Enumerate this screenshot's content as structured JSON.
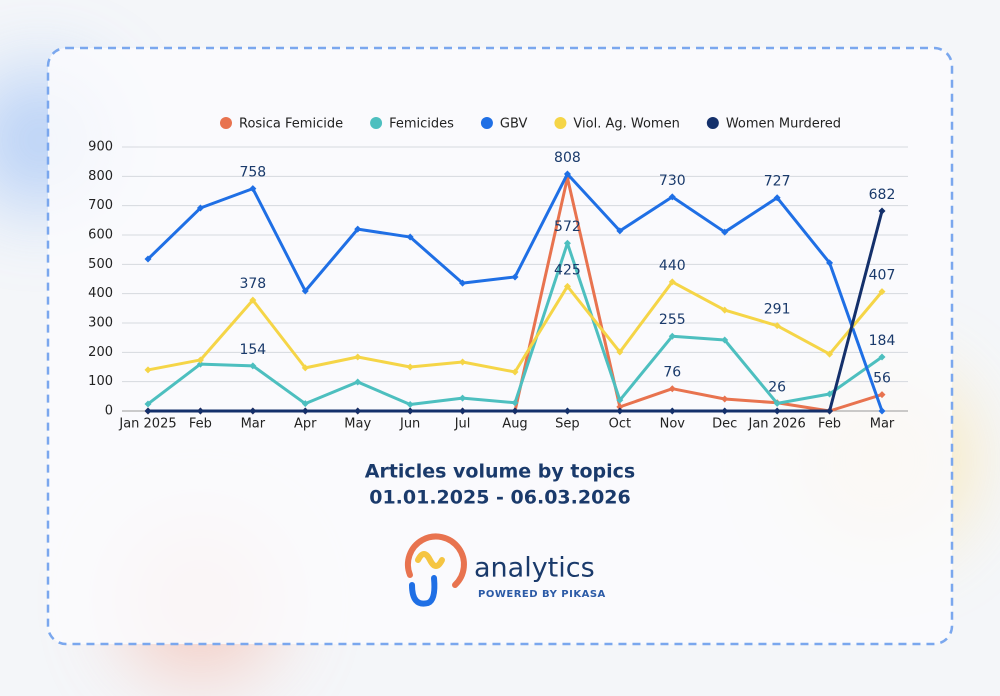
{
  "chart_data": {
    "type": "line",
    "title": "Articles volume by topics",
    "subtitle": "01.01.2025 - 06.03.2026",
    "categories": [
      "Jan 2025",
      "Feb",
      "Mar",
      "Apr",
      "May",
      "Jun",
      "Jul",
      "Aug",
      "Sep",
      "Oct",
      "Nov",
      "Dec",
      "Jan 2026",
      "Feb",
      "Mar"
    ],
    "ylim": [
      0,
      900
    ],
    "yticks": [
      0,
      100,
      200,
      300,
      400,
      500,
      600,
      700,
      800,
      900
    ],
    "grid": true,
    "legend": "top",
    "series": [
      {
        "name": "Rosica Femicide",
        "color": "#e8734f",
        "values": [
          0,
          0,
          0,
          0,
          0,
          0,
          0,
          0,
          795,
          14,
          76,
          41,
          28,
          0,
          56
        ],
        "value_labels": [
          null,
          null,
          null,
          null,
          null,
          null,
          null,
          null,
          null,
          null,
          "76",
          null,
          null,
          null,
          "56"
        ]
      },
      {
        "name": "Femicides",
        "color": "#4dbfbf",
        "values": [
          24,
          160,
          154,
          25,
          99,
          22,
          44,
          28,
          572,
          37,
          255,
          242,
          26,
          58,
          184
        ],
        "value_labels": [
          null,
          null,
          "154",
          null,
          null,
          null,
          null,
          null,
          "572",
          null,
          "255",
          null,
          "26",
          null,
          "184"
        ]
      },
      {
        "name": "GBV",
        "color": "#1f6fe5",
        "values": [
          518,
          692,
          758,
          409,
          620,
          593,
          436,
          457,
          808,
          614,
          730,
          610,
          727,
          505,
          0
        ],
        "value_labels": [
          null,
          null,
          "758",
          null,
          null,
          null,
          null,
          null,
          "808",
          null,
          "730",
          null,
          "727",
          null,
          null
        ]
      },
      {
        "name": "Viol. Ag. Women",
        "color": "#f5d547",
        "values": [
          140,
          174,
          378,
          147,
          184,
          150,
          167,
          133,
          425,
          201,
          440,
          344,
          291,
          194,
          407
        ],
        "value_labels": [
          null,
          null,
          "378",
          null,
          null,
          null,
          null,
          null,
          "425",
          null,
          "440",
          null,
          "291",
          null,
          "407"
        ]
      },
      {
        "name": "Women Murdered",
        "color": "#14306b",
        "values": [
          0,
          0,
          0,
          0,
          0,
          0,
          0,
          0,
          0,
          0,
          0,
          0,
          0,
          0,
          682
        ],
        "value_labels": [
          null,
          null,
          null,
          null,
          null,
          null,
          null,
          null,
          null,
          null,
          null,
          null,
          null,
          null,
          "682"
        ]
      }
    ]
  },
  "logo": {
    "name": "analytics",
    "tagline": "POWERED BY PIKASA"
  }
}
